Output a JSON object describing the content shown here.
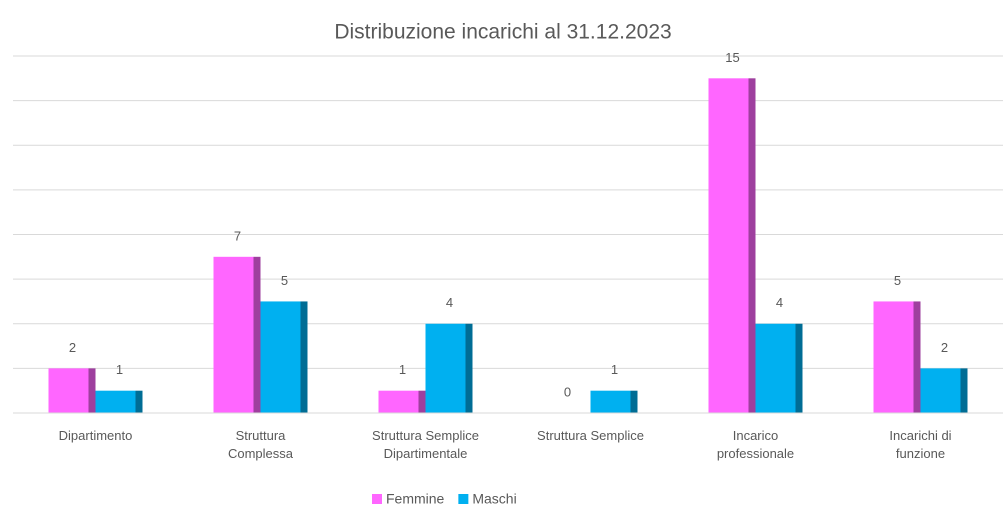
{
  "chart_data": {
    "type": "bar",
    "title": "Distribuzione incarichi al 31.12.2023",
    "categories": [
      "Dipartimento",
      "Struttura\nComplessa",
      "Struttura Semplice\nDipartimentale",
      "Struttura Semplice",
      "Incarico\nprofessionale",
      "Incarichi di\nfunzione"
    ],
    "series": [
      {
        "name": "Femmine",
        "color": "#ff66ff",
        "values": [
          2,
          7,
          1,
          0,
          15,
          5
        ]
      },
      {
        "name": "Maschi",
        "color": "#00b0f0",
        "values": [
          1,
          5,
          4,
          1,
          4,
          2
        ]
      }
    ],
    "ylim": [
      0,
      16
    ],
    "yticks": [
      0,
      2,
      4,
      6,
      8,
      10,
      12,
      14,
      16
    ],
    "grid": true,
    "legend": "bottom"
  }
}
